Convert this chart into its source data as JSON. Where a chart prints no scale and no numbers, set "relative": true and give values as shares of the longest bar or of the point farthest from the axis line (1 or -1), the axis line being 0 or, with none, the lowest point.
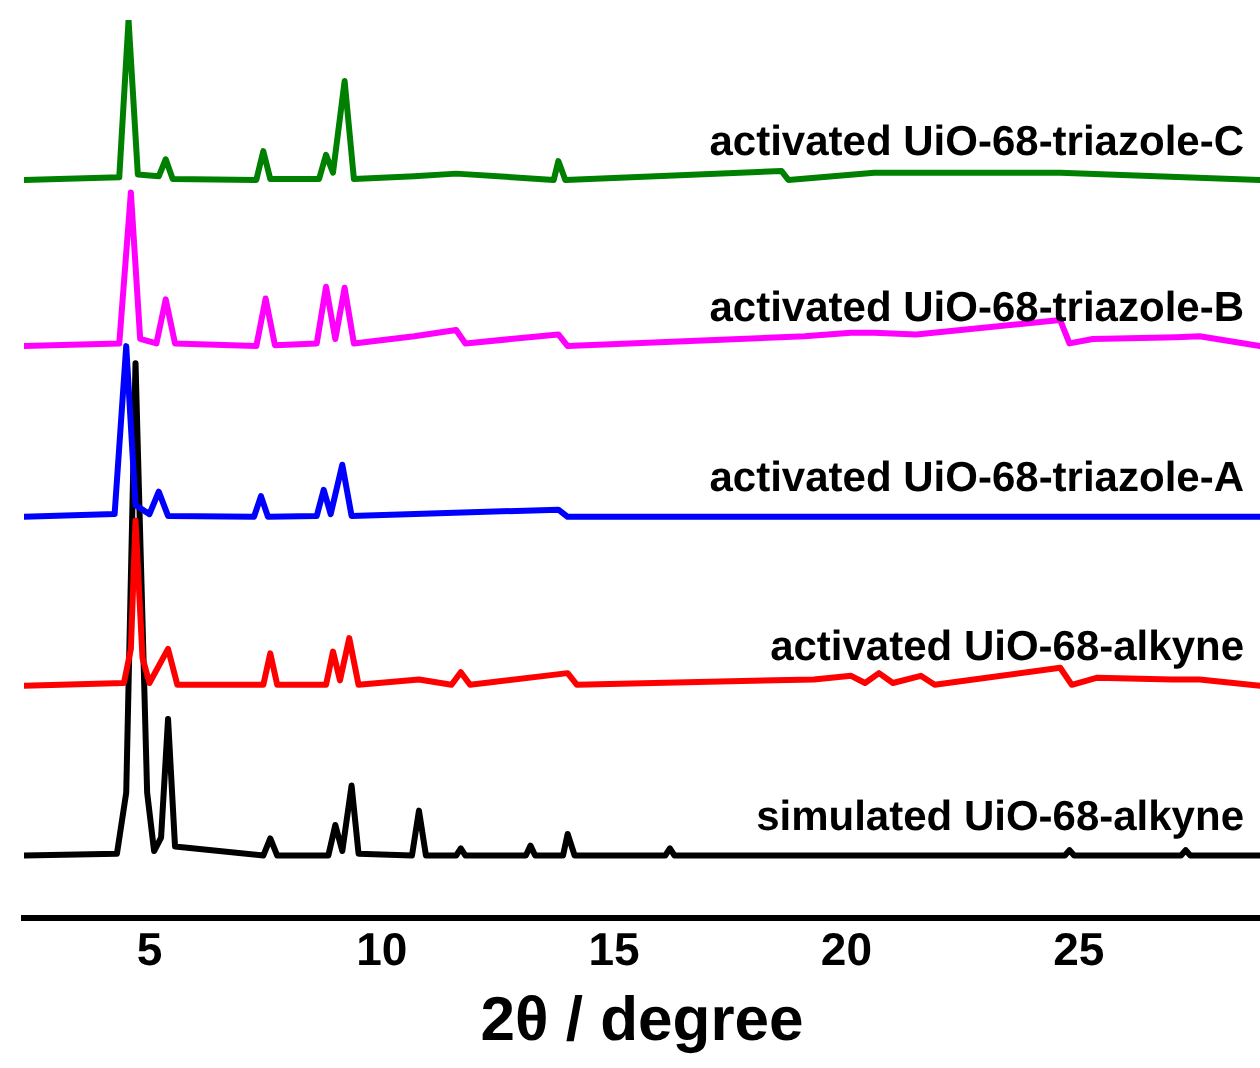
{
  "chart_data": {
    "type": "line",
    "xlabel": "2θ / degree",
    "relative": true,
    "xlim": [
      2.3,
      28.9
    ],
    "xticks": [
      5,
      10,
      15,
      20,
      25
    ],
    "grid": false,
    "legend": false,
    "marker": "none",
    "line_style": "solid",
    "tick_labels": "x",
    "series": [
      {
        "name": "activated UiO-68-triazole-C",
        "color": "#008000",
        "x": [
          2.3,
          4.35,
          4.55,
          4.75,
          5.2,
          5.35,
          5.5,
          7.3,
          7.45,
          7.6,
          8.65,
          8.8,
          8.95,
          9.2,
          9.4,
          10.7,
          11.6,
          13.7,
          13.8,
          13.95,
          18.6,
          18.75,
          20.6,
          24.6,
          28.9
        ],
        "values": [
          0.822,
          0.825,
          1.0,
          0.828,
          0.826,
          0.845,
          0.823,
          0.822,
          0.854,
          0.823,
          0.823,
          0.85,
          0.83,
          0.932,
          0.823,
          0.826,
          0.829,
          0.822,
          0.843,
          0.822,
          0.832,
          0.822,
          0.83,
          0.83,
          0.822
        ]
      },
      {
        "name": "activated UiO-68-triazole-B",
        "color": "#ff00ff",
        "x": [
          2.3,
          4.35,
          4.6,
          4.8,
          5.15,
          5.35,
          5.55,
          7.3,
          7.5,
          7.7,
          8.6,
          8.8,
          9.0,
          9.2,
          9.4,
          10.7,
          11.6,
          11.8,
          13.8,
          14.0,
          19.1,
          20.1,
          20.6,
          21.5,
          24.6,
          24.8,
          25.3,
          27.1,
          27.6,
          28.9
        ],
        "values": [
          0.637,
          0.64,
          0.808,
          0.645,
          0.64,
          0.689,
          0.64,
          0.637,
          0.69,
          0.638,
          0.64,
          0.703,
          0.645,
          0.702,
          0.64,
          0.648,
          0.655,
          0.64,
          0.65,
          0.637,
          0.648,
          0.652,
          0.652,
          0.65,
          0.666,
          0.64,
          0.645,
          0.647,
          0.648,
          0.637
        ]
      },
      {
        "name": "activated UiO-68-triazole-A",
        "color": "#0000ff",
        "x": [
          2.3,
          4.25,
          4.5,
          4.7,
          5.0,
          5.2,
          5.4,
          7.25,
          7.4,
          7.55,
          8.6,
          8.75,
          8.9,
          9.15,
          9.35,
          13.8,
          14.0,
          28.9
        ],
        "values": [
          0.447,
          0.45,
          0.637,
          0.46,
          0.45,
          0.475,
          0.448,
          0.447,
          0.47,
          0.447,
          0.448,
          0.477,
          0.45,
          0.505,
          0.448,
          0.455,
          0.447,
          0.447
        ]
      },
      {
        "name": "activated UiO-68-alkyne",
        "color": "#ff0000",
        "x": [
          2.3,
          4.45,
          4.6,
          4.7,
          4.85,
          5.0,
          5.4,
          5.6,
          7.45,
          7.6,
          7.75,
          8.8,
          8.95,
          9.1,
          9.3,
          9.5,
          10.8,
          11.5,
          11.7,
          11.9,
          14.0,
          14.2,
          19.3,
          20.1,
          20.4,
          20.7,
          21.0,
          21.6,
          21.9,
          24.6,
          24.85,
          25.4,
          27.0,
          27.6,
          28.9
        ],
        "values": [
          0.259,
          0.262,
          0.3,
          0.443,
          0.29,
          0.262,
          0.3,
          0.26,
          0.26,
          0.295,
          0.26,
          0.26,
          0.297,
          0.265,
          0.312,
          0.26,
          0.266,
          0.26,
          0.274,
          0.26,
          0.273,
          0.26,
          0.266,
          0.27,
          0.262,
          0.273,
          0.262,
          0.27,
          0.26,
          0.279,
          0.26,
          0.268,
          0.266,
          0.266,
          0.259
        ]
      },
      {
        "name": "simulated UiO-68-alkyne",
        "color": "#000000",
        "x": [
          2.3,
          4.3,
          4.5,
          4.7,
          4.95,
          5.1,
          5.25,
          5.4,
          5.55,
          7.45,
          7.6,
          7.75,
          8.85,
          9.0,
          9.15,
          9.35,
          9.5,
          10.65,
          10.8,
          10.95,
          11.6,
          11.7,
          11.8,
          13.1,
          13.2,
          13.3,
          13.9,
          14.0,
          14.15,
          16.1,
          16.2,
          16.3,
          24.7,
          24.8,
          24.9,
          27.2,
          27.3,
          27.4,
          28.9
        ],
        "values": [
          0.07,
          0.072,
          0.14,
          0.618,
          0.14,
          0.075,
          0.09,
          0.222,
          0.08,
          0.07,
          0.089,
          0.07,
          0.07,
          0.104,
          0.075,
          0.148,
          0.072,
          0.07,
          0.12,
          0.07,
          0.07,
          0.078,
          0.07,
          0.07,
          0.081,
          0.07,
          0.07,
          0.094,
          0.07,
          0.07,
          0.078,
          0.07,
          0.07,
          0.076,
          0.07,
          0.07,
          0.076,
          0.07,
          0.07
        ]
      }
    ]
  }
}
